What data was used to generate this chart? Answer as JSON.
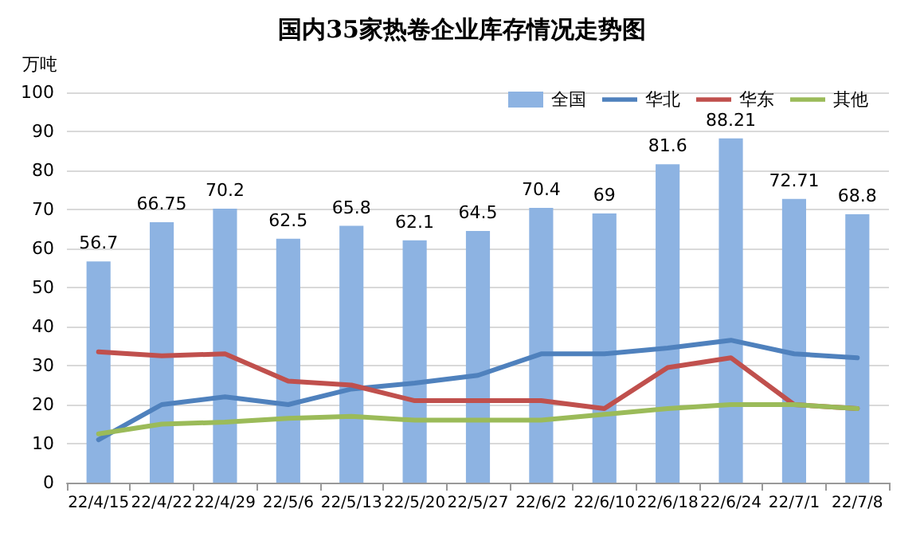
{
  "chart_data": {
    "type": "bar",
    "title": "国内35家热卷企业库存情况走势图",
    "ylabel": "万吨",
    "categories": [
      "22/4/15",
      "22/4/22",
      "22/4/29",
      "22/5/6",
      "22/5/13",
      "22/5/20",
      "22/5/27",
      "22/6/2",
      "22/6/10",
      "22/6/18",
      "22/6/24",
      "22/7/1",
      "22/7/8"
    ],
    "series": [
      {
        "name": "全国",
        "color": "#8db3e2",
        "values": [
          56.7,
          66.75,
          70.2,
          62.5,
          65.8,
          62.1,
          64.5,
          70.4,
          69,
          81.6,
          88.21,
          72.71,
          68.8
        ],
        "value_labels": [
          "56.7",
          "66.75",
          "70.2",
          "62.5",
          "65.8",
          "62.1",
          "64.5",
          "70.4",
          "69",
          "81.6",
          "88.21",
          "72.71",
          "68.8"
        ]
      },
      {
        "name": "华北",
        "type": "line",
        "color": "#4f81bd",
        "values": [
          11,
          20,
          22,
          20,
          24,
          25.5,
          27.5,
          33,
          33,
          34.5,
          36.5,
          33,
          32
        ]
      },
      {
        "name": "华东",
        "type": "line",
        "color": "#c0504d",
        "values": [
          33.5,
          32.5,
          33,
          26,
          25,
          21,
          21,
          21,
          19,
          29.5,
          32,
          20,
          19
        ]
      },
      {
        "name": "其他",
        "type": "line",
        "color": "#9bbb59",
        "values": [
          12.5,
          15,
          15.5,
          16.5,
          17,
          16,
          16,
          16,
          17.5,
          19,
          20,
          20,
          19
        ]
      }
    ],
    "ylim": [
      0,
      100
    ],
    "yticks": [
      0,
      10,
      20,
      30,
      40,
      50,
      60,
      70,
      80,
      90,
      100
    ],
    "grid": "y",
    "legend": "top right",
    "marker": "none",
    "line_style": "solid"
  }
}
